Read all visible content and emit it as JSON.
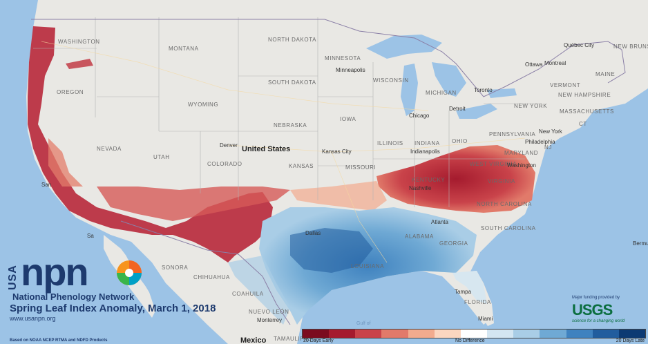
{
  "brand": {
    "usa": "USA",
    "npn": "npn",
    "org": "National Phenology Network",
    "title": "Spring Leaf Index Anomaly, March 1, 2018",
    "url": "www.usanpn.org",
    "note": "Based on NOAA NCEP RTMA and NDFD Products"
  },
  "funding": {
    "text": "Major funding provided by",
    "mark": "USGS",
    "tagline": "science for a changing world",
    "color": "#0b6e3f"
  },
  "legend": {
    "left": "20 Days Early",
    "center": "No Difference",
    "right": "20 Days Late",
    "colors": [
      "#7b0b1f",
      "#a51b2e",
      "#c9434a",
      "#e17a6a",
      "#f2ab8e",
      "#fbd6c0",
      "#ffffff",
      "#d4e6f2",
      "#a9cde6",
      "#6fa9d4",
      "#3f82bf",
      "#215d9e",
      "#0c3a73"
    ]
  },
  "places": {
    "states": {
      "washington": "WASHINGTON",
      "oregon": "OREGON",
      "montana": "MONTANA",
      "wyoming": "WYOMING",
      "nevada": "NEVADA",
      "utah": "UTAH",
      "colorado": "COLORADO",
      "north_dakota": "NORTH DAKOTA",
      "south_dakota": "SOUTH DAKOTA",
      "nebraska": "NEBRASKA",
      "kansas": "KANSAS",
      "minnesota": "MINNESOTA",
      "wisconsin": "WISCONSIN",
      "iowa": "IOWA",
      "illinois": "ILLINOIS",
      "missouri": "MISSOURI",
      "michigan": "MICHIGAN",
      "indiana": "INDIANA",
      "ohio": "OHIO",
      "kentucky": "KENTUCKY",
      "west_virginia": "WEST VIRGINIA",
      "virginia": "VIRGINIA",
      "north_carolina": "NORTH CAROLINA",
      "south_carolina": "SOUTH CAROLINA",
      "georgia": "GEORGIA",
      "alabama": "ALABAMA",
      "louisiana": "LOUISIANA",
      "florida": "FLORIDA",
      "pennsylvania": "PENNSYLVANIA",
      "new_york": "NEW YORK",
      "maryland": "MARYLAND",
      "vermont": "VERMONT",
      "new_hampshire": "NEW HAMPSHIRE",
      "massachusetts": "MASSACHUSETTS",
      "maine": "MAINE",
      "ct": "CT",
      "nj": "NJ",
      "sonora": "SONORA",
      "chihuahua": "CHIHUAHUA",
      "coahuila": "COAHUILA",
      "nuevo_leon": "NUEVO LEÓN",
      "tamaulipas": "TAMAULIPAS",
      "quebec": "Québec City",
      "new_brunswick": "NEW BRUNSWICK"
    },
    "cities": {
      "minneapolis": "Minneapolis",
      "denver": "Denver",
      "kansas_city": "Kansas City",
      "chicago": "Chicago",
      "detroit": "Detroit",
      "toronto": "Toronto",
      "ottawa": "Ottawa",
      "montreal": "Montreal",
      "indianapolis": "Indianapolis",
      "nashville": "Nashville",
      "new_york": "New York",
      "philadelphia": "Philadelphia",
      "washington": "Washington",
      "monterrey": "Monterrey",
      "miami": "Miami",
      "tampa": "Tampa",
      "atlanta": "Atlanta",
      "dallas": "Dallas",
      "san": "San",
      "sa": "Sa",
      "bermu": "Bermu"
    },
    "country_us": "United States",
    "country_mx": "Mexico",
    "gulf": "Gulf of"
  }
}
